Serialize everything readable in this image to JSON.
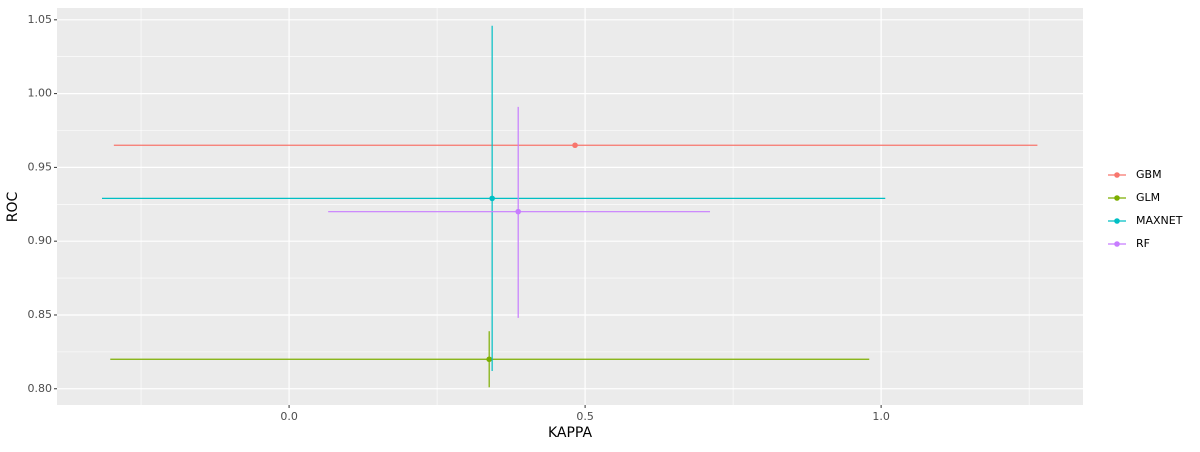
{
  "chart_data": {
    "type": "errorbar-scatter",
    "x_label": "KAPPA",
    "y_label": "ROC",
    "xlim": [
      -0.392,
      1.341
    ],
    "ylim": [
      0.789,
      1.058
    ],
    "xticks": [
      {
        "value": 0,
        "label": "0.0"
      },
      {
        "value": 0.5,
        "label": "0.5"
      },
      {
        "value": 1,
        "label": "1.0"
      }
    ],
    "yticks": [
      {
        "value": 0.8,
        "label": "0.80"
      },
      {
        "value": 0.85,
        "label": "0.85"
      },
      {
        "value": 0.9,
        "label": "0.90"
      },
      {
        "value": 0.95,
        "label": "0.95"
      },
      {
        "value": 1,
        "label": "1.00"
      },
      {
        "value": 1.05,
        "label": "1.05"
      }
    ],
    "grid": true,
    "series": [
      {
        "name": "GBM",
        "color": "#F8766D",
        "x": [
          0.483
        ],
        "values": [
          0.965
        ],
        "xmin": [
          -0.296
        ],
        "xmax": [
          1.264
        ],
        "ymin": [
          0.964
        ],
        "ymax": [
          0.966
        ]
      },
      {
        "name": "GLM",
        "color": "#7CAE00",
        "x": [
          0.338
        ],
        "values": [
          0.82
        ],
        "xmin": [
          -0.302
        ],
        "xmax": [
          0.98
        ],
        "ymin": [
          0.801
        ],
        "ymax": [
          0.839
        ]
      },
      {
        "name": "MAXNET",
        "color": "#00BFC4",
        "x": [
          0.343
        ],
        "values": [
          0.929
        ],
        "xmin": [
          -0.316
        ],
        "xmax": [
          1.007
        ],
        "ymin": [
          0.812
        ],
        "ymax": [
          1.046
        ]
      },
      {
        "name": "RF",
        "color": "#C77CFF",
        "x": [
          0.387
        ],
        "values": [
          0.92
        ],
        "xmin": [
          0.066
        ],
        "xmax": [
          0.711
        ],
        "ymin": [
          0.848
        ],
        "ymax": [
          0.991
        ]
      }
    ]
  }
}
